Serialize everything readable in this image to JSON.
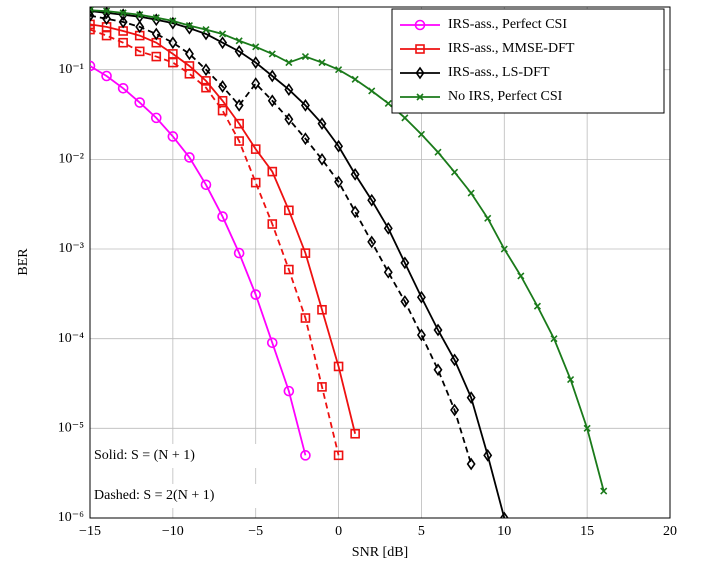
{
  "chart_data": {
    "type": "line",
    "xlabel": "SNR [dB]",
    "ylabel": "BER",
    "xlim": [
      -15,
      20
    ],
    "xticks": [
      {
        "value": -15,
        "label": "−15"
      },
      {
        "value": -10,
        "label": "−10"
      },
      {
        "value": -5,
        "label": "−5"
      },
      0,
      5,
      10,
      15,
      20
    ],
    "ylim": [
      1e-06,
      0.5
    ],
    "log_y": true,
    "grid": true,
    "legend_corner": "top-right",
    "yticks": [
      {
        "value": 1e-06,
        "label": "10⁻⁶"
      },
      {
        "value": 1e-05,
        "label": "10⁻⁵"
      },
      {
        "value": 0.0001,
        "label": "10⁻⁴"
      },
      {
        "value": 0.001,
        "label": "10⁻³"
      },
      {
        "value": 0.01,
        "label": "10⁻²"
      },
      {
        "value": 0.1,
        "label": "10⁻¹"
      }
    ],
    "annotations": [
      "Solid: S = (N + 1)",
      "Dashed: S = 2(N + 1)"
    ],
    "series": [
      {
        "name": "IRS-ass., Perfect CSI",
        "color": "#ff00ff",
        "marker": "circle",
        "dashed": false,
        "x": [
          -15,
          -14,
          -13,
          -12,
          -11,
          -10,
          -9,
          -8,
          -7,
          -6,
          -5,
          -4,
          -3,
          -2
        ],
        "values": [
          0.11,
          0.085,
          0.062,
          0.043,
          0.029,
          0.018,
          0.0105,
          0.0052,
          0.0023,
          0.0009,
          0.00031,
          9e-05,
          2.6e-05,
          5e-06
        ]
      },
      {
        "name": "IRS-ass., MMSE-DFT",
        "color": "#ee1111",
        "marker": "square",
        "dashed": false,
        "x": [
          -15,
          -14,
          -13,
          -12,
          -11,
          -10,
          -9,
          -8,
          -7,
          -6,
          -5,
          -4,
          -3,
          -2,
          -1,
          0,
          1
        ],
        "values": [
          0.32,
          0.3,
          0.27,
          0.24,
          0.2,
          0.15,
          0.11,
          0.075,
          0.045,
          0.025,
          0.013,
          0.0073,
          0.0027,
          0.0009,
          0.00021,
          4.9e-05,
          8.7e-06
        ]
      },
      {
        "name": "IRS-ass., LS-DFT",
        "color": "#000000",
        "marker": "diamond",
        "dashed": false,
        "x": [
          -15,
          -14,
          -13,
          -12,
          -11,
          -10,
          -9,
          -8,
          -7,
          -6,
          -5,
          -4,
          -3,
          -2,
          -1,
          0,
          1,
          2,
          3,
          4,
          5,
          6,
          7,
          8,
          9,
          10
        ],
        "values": [
          0.45,
          0.43,
          0.41,
          0.39,
          0.36,
          0.33,
          0.29,
          0.25,
          0.2,
          0.16,
          0.12,
          0.085,
          0.06,
          0.04,
          0.025,
          0.014,
          0.0068,
          0.0035,
          0.0017,
          0.0007,
          0.00029,
          0.000125,
          5.8e-05,
          2.2e-05,
          5e-06,
          1e-06
        ]
      },
      {
        "name": "No IRS, Perfect CSI",
        "color": "#1a7a1a",
        "marker": "cross",
        "dashed": false,
        "x": [
          -15,
          -14,
          -13,
          -12,
          -11,
          -10,
          -9,
          -8,
          -7,
          -6,
          -5,
          -4,
          -3,
          -2,
          -1,
          0,
          1,
          2,
          3,
          4,
          5,
          6,
          7,
          8,
          9,
          10,
          11,
          12,
          13,
          14,
          15,
          16
        ],
        "values": [
          0.46,
          0.45,
          0.43,
          0.41,
          0.38,
          0.35,
          0.31,
          0.28,
          0.25,
          0.21,
          0.18,
          0.15,
          0.12,
          0.14,
          0.12,
          0.1,
          0.078,
          0.058,
          0.042,
          0.029,
          0.019,
          0.012,
          0.0072,
          0.0042,
          0.0022,
          0.001,
          0.0005,
          0.00023,
          0.0001,
          3.5e-05,
          1e-05,
          2e-06
        ]
      },
      {
        "color": "#ee1111",
        "marker": "square",
        "dashed": true,
        "x": [
          -15,
          -14,
          -13,
          -12,
          -11,
          -10,
          -9,
          -8,
          -7,
          -6,
          -5,
          -4,
          -3,
          -2,
          -1,
          0
        ],
        "values": [
          0.28,
          0.24,
          0.2,
          0.16,
          0.14,
          0.12,
          0.09,
          0.063,
          0.035,
          0.016,
          0.0055,
          0.0019,
          0.00059,
          0.00017,
          2.9e-05,
          5e-06
        ]
      },
      {
        "color": "#000000",
        "marker": "diamond",
        "dashed": true,
        "x": [
          -15,
          -14,
          -13,
          -12,
          -11,
          -10,
          -9,
          -8,
          -7,
          -6,
          -5,
          -4,
          -3,
          -2,
          -1,
          0,
          1,
          2,
          3,
          4,
          5,
          6,
          7,
          8
        ],
        "values": [
          0.4,
          0.37,
          0.34,
          0.3,
          0.25,
          0.2,
          0.15,
          0.1,
          0.065,
          0.04,
          0.07,
          0.045,
          0.028,
          0.017,
          0.01,
          0.0056,
          0.0026,
          0.0012,
          0.00055,
          0.00026,
          0.00011,
          4.5e-05,
          1.6e-05,
          4e-06
        ]
      }
    ]
  }
}
